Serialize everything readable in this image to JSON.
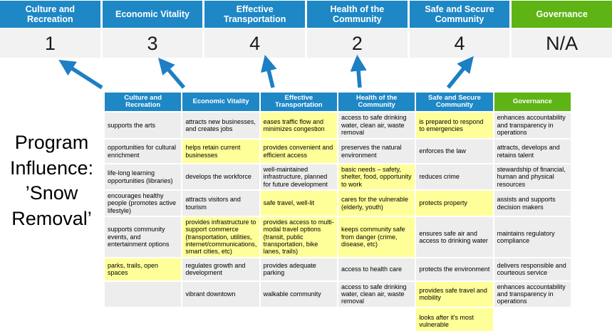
{
  "title": {
    "text": "Program\nInfluence:\n’Snow\nRemoval’"
  },
  "colors": {
    "header_blue": "#1e87c5",
    "header_green": "#5eb414",
    "highlight_yellow": "#ffff99",
    "cell_gray": "#ededed",
    "score_row_bg": "#f2f2f2",
    "arrow_blue": "#1d7fc4"
  },
  "icons": {
    "influence_arrows": [
      "arrow-up-left",
      "arrow-up-left",
      "arrow-up",
      "arrow-up",
      "arrow-up-right"
    ]
  },
  "banner": {
    "items": [
      {
        "label": "Culture and Recreation",
        "value": "1"
      },
      {
        "label": "Economic Vitality",
        "value": "3"
      },
      {
        "label": "Effective Transportation",
        "value": "4"
      },
      {
        "label": "Health of the Community",
        "value": "2"
      },
      {
        "label": "Safe and Secure Community",
        "value": "4"
      },
      {
        "label": "Governance",
        "value": "N/A"
      }
    ]
  },
  "table": {
    "headers": [
      "Culture and Recreation",
      "Economic Vitality",
      "Effective Transportation",
      "Health of the Community",
      "Safe and Secure Community",
      "Governance"
    ],
    "rows": [
      [
        {
          "text": "supports the arts",
          "bg": "gray"
        },
        {
          "text": "attracts new businesses, and creates jobs",
          "bg": "gray"
        },
        {
          "text": "eases traffic flow and minimizes congestion",
          "bg": "yellow"
        },
        {
          "text": "access to safe drinking water, clean air, waste removal",
          "bg": "gray"
        },
        {
          "text": "is prepared to respond to emergencies",
          "bg": "yellow"
        },
        {
          "text": "enhances accountability and transparency in operations",
          "bg": "gray"
        }
      ],
      [
        {
          "text": "opportunities for cultural enrichment",
          "bg": "gray"
        },
        {
          "text": "helps retain current businesses",
          "bg": "yellow"
        },
        {
          "text": "provides convenient and efficient access",
          "bg": "yellow"
        },
        {
          "text": "preserves the natural environment",
          "bg": "gray"
        },
        {
          "text": "enforces the law",
          "bg": "gray"
        },
        {
          "text": "attracts, develops and retains talent",
          "bg": "gray"
        }
      ],
      [
        {
          "text": "life-long learning opportunities (libraries)",
          "bg": "gray"
        },
        {
          "text": "develops the workforce",
          "bg": "gray"
        },
        {
          "text": "well-maintained infrastructure, planned for future development",
          "bg": "gray"
        },
        {
          "text": "basic needs – safety, shelter, food, opportunity to work",
          "bg": "yellow"
        },
        {
          "text": "reduces crime",
          "bg": "gray"
        },
        {
          "text": "stewardship of financial, human and physical resources",
          "bg": "gray"
        }
      ],
      [
        {
          "text": "encourages healthy people (promotes active lifestyle)",
          "bg": "gray"
        },
        {
          "text": "attracts visitors and tourism",
          "bg": "gray"
        },
        {
          "text": "safe travel, well-lit",
          "bg": "yellow"
        },
        {
          "text": "cares for the vulnerable (elderly, youth)",
          "bg": "yellow"
        },
        {
          "text": "protects property",
          "bg": "yellow"
        },
        {
          "text": "assists and supports decision makers",
          "bg": "gray"
        }
      ],
      [
        {
          "text": "supports community events, and entertainment options",
          "bg": "gray"
        },
        {
          "text": "provides infrastructure to support commerce (transportation, utilities, internet/communications, smart cities, etc)",
          "bg": "yellow"
        },
        {
          "text": "provides access to multi-modal travel options (transit, public transportation, bike lanes, trails)",
          "bg": "yellow"
        },
        {
          "text": "keeps community safe from danger (crime, disease, etc)",
          "bg": "yellow"
        },
        {
          "text": "ensures safe air and access to drinking water",
          "bg": "gray"
        },
        {
          "text": "maintains regulatory compliance",
          "bg": "gray"
        }
      ],
      [
        {
          "text": "parks, trails, open spaces",
          "bg": "yellow"
        },
        {
          "text": "regulates growth and development",
          "bg": "gray"
        },
        {
          "text": "provides adequate parking",
          "bg": "gray"
        },
        {
          "text": "access to health care",
          "bg": "gray"
        },
        {
          "text": "protects the environment",
          "bg": "gray"
        },
        {
          "text": "delivers responsible and courteous service",
          "bg": "gray"
        }
      ],
      [
        {
          "text": "",
          "bg": "gray"
        },
        {
          "text": "vibrant downtown",
          "bg": "gray"
        },
        {
          "text": "walkable community",
          "bg": "gray"
        },
        {
          "text": "access to safe drinking water, clean air, waste removal",
          "bg": "gray"
        },
        {
          "text": "provides safe travel and mobility",
          "bg": "yellow"
        },
        {
          "text": "enhances accountability and transparency in operations",
          "bg": "gray"
        }
      ],
      [
        {
          "text": "",
          "bg": "white"
        },
        {
          "text": "",
          "bg": "white"
        },
        {
          "text": "",
          "bg": "white"
        },
        {
          "text": "",
          "bg": "white"
        },
        {
          "text": "looks after it's most vulnerable",
          "bg": "yellow"
        },
        {
          "text": "",
          "bg": "white"
        }
      ]
    ]
  }
}
